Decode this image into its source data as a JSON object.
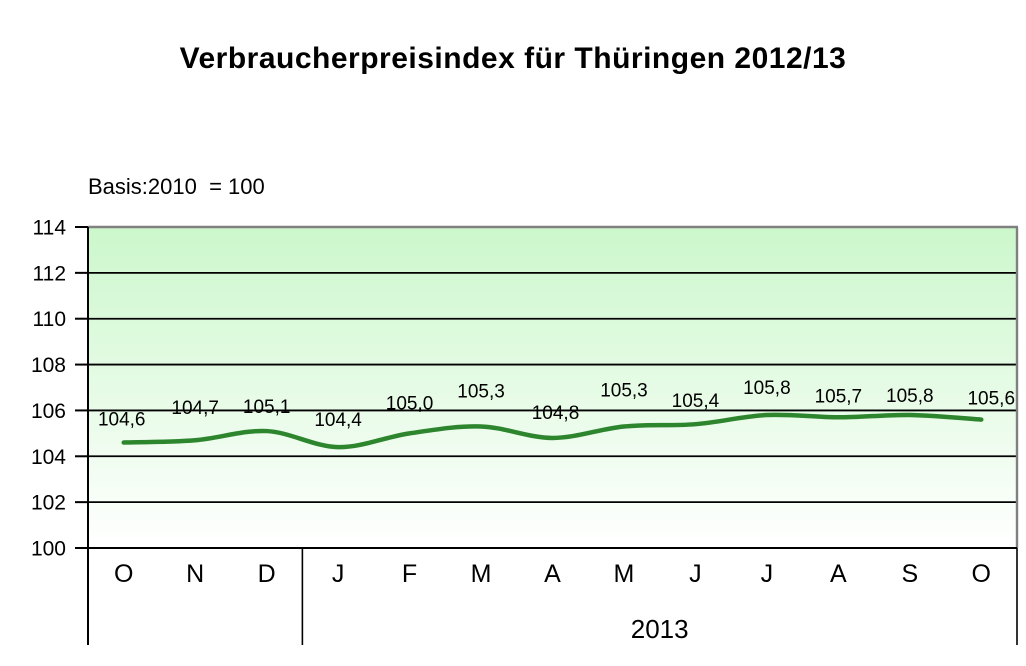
{
  "title": "Verbraucherpreisindex für Thüringen 2012/13",
  "subtitle": "Basis:2010  = 100",
  "chart_data": {
    "type": "line",
    "title": "Verbraucherpreisindex für Thüringen 2012/13",
    "subtitle": "Basis:2010  = 100",
    "categories": [
      "O",
      "N",
      "D",
      "J",
      "F",
      "M",
      "A",
      "M",
      "J",
      "J",
      "A",
      "S",
      "O"
    ],
    "values": [
      104.6,
      104.7,
      105.1,
      104.4,
      105.0,
      105.3,
      104.8,
      105.3,
      105.4,
      105.8,
      105.7,
      105.8,
      105.6
    ],
    "point_labels": [
      "104,6",
      "104,7",
      "105,1",
      "104,4",
      "105,0",
      "105,3",
      "104,8",
      "105,3",
      "105,4",
      "105,8",
      "105,7",
      "105,8",
      "105,6"
    ],
    "xlabel": "",
    "ylabel": "",
    "ylim": [
      100,
      114
    ],
    "ytick_step": 2,
    "ytick_labels": [
      "100",
      "102",
      "104",
      "106",
      "108",
      "110",
      "112",
      "114"
    ],
    "x_group_label": "2013",
    "x_group_start_index": 3,
    "grid": true,
    "legend_position": "none",
    "smoothed": true,
    "colors": {
      "line": "#2d862d",
      "plot_bg_top": "#ccf7cc",
      "plot_bg_bottom": "#ffffff",
      "gridline": "#000000",
      "axis": "#000000",
      "outer_border": "#808080",
      "text": "#000000"
    },
    "label_dy": [
      -31,
      -40,
      -32,
      -35,
      -38,
      -43,
      -33,
      -44,
      -31,
      -35,
      -29,
      -27,
      -29
    ],
    "label_dx": [
      -2,
      0,
      0,
      0,
      0,
      0,
      3,
      0,
      0,
      0,
      0,
      0,
      10
    ]
  }
}
